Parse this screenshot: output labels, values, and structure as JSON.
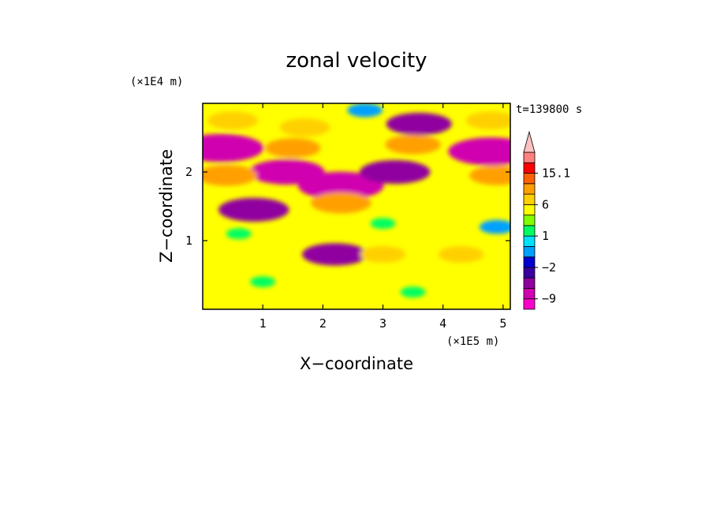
{
  "chart_data": {
    "type": "heatmap",
    "title": "zonal velocity",
    "xlabel": "X−coordinate",
    "ylabel": "Z−coordinate",
    "x_scale_label": "(×1E5 m)",
    "y_scale_label": "(×1E4 m)",
    "time_label": "t=139800 s",
    "xlim": [
      0,
      5.12
    ],
    "ylim": [
      0,
      3.0
    ],
    "x_ticks": [
      {
        "value": 1,
        "label": "1"
      },
      {
        "value": 2,
        "label": "2"
      },
      {
        "value": 3,
        "label": "3"
      },
      {
        "value": 4,
        "label": "4"
      },
      {
        "value": 5,
        "label": "5"
      }
    ],
    "y_ticks": [
      {
        "value": 1,
        "label": "1"
      },
      {
        "value": 2,
        "label": "2"
      }
    ],
    "colorbar": {
      "levels": [
        -13.5,
        -9,
        -6,
        -4,
        -2,
        -1,
        0,
        1,
        2,
        4,
        6,
        9,
        12,
        15.1
      ],
      "colors": [
        "#ff00cc",
        "#d000b0",
        "#9000a0",
        "#3a00a0",
        "#0000d0",
        "#00a0ff",
        "#00e0ff",
        "#00ff60",
        "#80ff00",
        "#ffff00",
        "#ffd000",
        "#ffa000",
        "#ff6000",
        "#ff0000",
        "#ff8080",
        "#ffc0c0"
      ],
      "labels": [
        {
          "value": 15.1,
          "label": "15.1"
        },
        {
          "value": 6,
          "label": "6"
        },
        {
          "value": 1,
          "label": "1"
        },
        {
          "value": -2,
          "label": "−2"
        },
        {
          "value": -9,
          "label": "−9"
        }
      ]
    },
    "features": [
      {
        "x": 0.3,
        "z": 2.35,
        "value": -12
      },
      {
        "x": 4.8,
        "z": 2.3,
        "value": -12
      },
      {
        "x": 2.3,
        "z": 1.8,
        "value": -12
      },
      {
        "x": 1.4,
        "z": 2.0,
        "value": -10
      },
      {
        "x": 3.2,
        "z": 2.0,
        "value": -9
      },
      {
        "x": 0.85,
        "z": 1.45,
        "value": -9
      },
      {
        "x": 3.6,
        "z": 2.7,
        "value": -8
      },
      {
        "x": 2.2,
        "z": 0.8,
        "value": -8
      },
      {
        "x": 0.4,
        "z": 1.95,
        "value": 7
      },
      {
        "x": 1.5,
        "z": 2.35,
        "value": 6
      },
      {
        "x": 3.5,
        "z": 2.4,
        "value": 6
      },
      {
        "x": 4.9,
        "z": 1.95,
        "value": 6
      },
      {
        "x": 2.3,
        "z": 1.55,
        "value": 7
      },
      {
        "x": 0.5,
        "z": 2.75,
        "value": 5
      },
      {
        "x": 4.8,
        "z": 2.75,
        "value": 5
      },
      {
        "x": 1.7,
        "z": 2.65,
        "value": 5
      },
      {
        "x": 3.0,
        "z": 0.8,
        "value": 4
      },
      {
        "x": 4.3,
        "z": 0.8,
        "value": 4
      },
      {
        "x": 1.0,
        "z": 0.4,
        "value": 0
      },
      {
        "x": 4.9,
        "z": 1.2,
        "value": -2
      },
      {
        "x": 2.7,
        "z": 2.9,
        "value": -2
      },
      {
        "x": 3.0,
        "z": 1.25,
        "value": 0
      },
      {
        "x": 0.6,
        "z": 1.1,
        "value": 0
      },
      {
        "x": 3.5,
        "z": 0.25,
        "value": 0
      }
    ]
  }
}
